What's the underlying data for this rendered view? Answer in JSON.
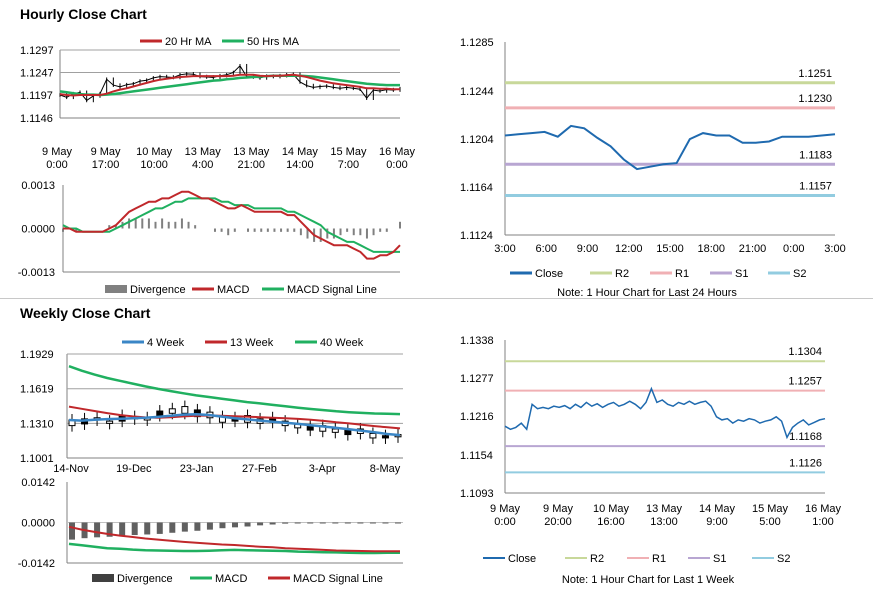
{
  "sections": {
    "hourly_title": "Hourly Close Chart",
    "weekly_title": "Weekly Close Chart"
  },
  "colors": {
    "red": "#c0282b",
    "green": "#20b060",
    "blue": "#3a86c6",
    "gray": "#808080",
    "darkblue": "#1f6aaf",
    "r2": "#c8d89a",
    "r1": "#f0b0b4",
    "s1": "#b8a6d2",
    "s2": "#92cce0"
  },
  "chart_data": [
    {
      "id": "hourly_price",
      "type": "line",
      "legend": [
        "20 Hr MA",
        "50 Hrs MA"
      ],
      "x_tick_labels": [
        [
          "9 May",
          "0:00"
        ],
        [
          "9 May",
          "17:00"
        ],
        [
          "10 May",
          "10:00"
        ],
        [
          "13 May",
          "4:00"
        ],
        [
          "13 May",
          "21:00"
        ],
        [
          "14 May",
          "14:00"
        ],
        [
          "15 May",
          "7:00"
        ],
        [
          "16 May",
          "0:00"
        ]
      ],
      "y_tick_labels": [
        "1.1297",
        "1.1247",
        "1.1197",
        "1.1146"
      ],
      "ylim": [
        1.1146,
        1.1297
      ],
      "series": [
        {
          "name": "Close",
          "values": [
            1.1197,
            1.1192,
            1.12,
            1.1203,
            1.1185,
            1.1195,
            1.12,
            1.1232,
            1.1219,
            1.1215,
            1.122,
            1.1222,
            1.1228,
            1.123,
            1.1235,
            1.1238,
            1.1237,
            1.1236,
            1.1242,
            1.1244,
            1.1243,
            1.1238,
            1.1237,
            1.1236,
            1.124,
            1.1242,
            1.1247,
            1.1262,
            1.1238,
            1.1237,
            1.1235,
            1.1239,
            1.1238,
            1.124,
            1.1242,
            1.1243,
            1.1226,
            1.1218,
            1.1214,
            1.1216,
            1.1217,
            1.1214,
            1.1212,
            1.1214,
            1.1212,
            1.121,
            1.119,
            1.1208,
            1.1206,
            1.1209,
            1.1208,
            1.1211
          ]
        },
        {
          "name": "20 Hr MA",
          "values": [
            1.1199,
            1.1197,
            1.1196,
            1.1197,
            1.1197,
            1.1197,
            1.1197,
            1.12,
            1.1205,
            1.1209,
            1.1212,
            1.1216,
            1.122,
            1.1224,
            1.1228,
            1.1231,
            1.1233,
            1.1235,
            1.1237,
            1.1238,
            1.1239,
            1.1239,
            1.1239,
            1.1239,
            1.1239,
            1.1239,
            1.124,
            1.1242,
            1.1242,
            1.1242,
            1.124,
            1.1239,
            1.124,
            1.124,
            1.1241,
            1.1242,
            1.124,
            1.1237,
            1.1233,
            1.1229,
            1.1226,
            1.1223,
            1.1221,
            1.1219,
            1.1217,
            1.1215,
            1.1212,
            1.1212,
            1.1211,
            1.1211,
            1.121,
            1.121
          ]
        },
        {
          "name": "50 Hrs MA",
          "values": [
            1.1205,
            1.1203,
            1.1201,
            1.1199,
            1.1198,
            1.1198,
            1.1197,
            1.1198,
            1.1199,
            1.1201,
            1.1203,
            1.1205,
            1.1207,
            1.1209,
            1.1211,
            1.1213,
            1.1215,
            1.1217,
            1.1219,
            1.1221,
            1.1223,
            1.1225,
            1.1227,
            1.1229,
            1.123,
            1.1232,
            1.1233,
            1.1235,
            1.1236,
            1.1237,
            1.1238,
            1.1239,
            1.124,
            1.124,
            1.124,
            1.124,
            1.124,
            1.1239,
            1.1238,
            1.1236,
            1.1234,
            1.1232,
            1.123,
            1.1228,
            1.1226,
            1.1224,
            1.1222,
            1.1221,
            1.122,
            1.1219,
            1.1219,
            1.1219
          ]
        }
      ]
    },
    {
      "id": "hourly_macd",
      "type": "line",
      "legend": [
        "Divergence",
        "MACD",
        "MACD Signal Line"
      ],
      "y_tick_labels": [
        "0.0013",
        "0.0000",
        "-0.0013"
      ],
      "ylim": [
        -0.0013,
        0.0013
      ],
      "series": [
        {
          "name": "MACD",
          "values": [
            0.0,
            0.0,
            -0.0001,
            -0.0001,
            -0.0001,
            -0.0001,
            -0.0001,
            0.0,
            0.0001,
            0.0003,
            0.0005,
            0.0006,
            0.0007,
            0.0008,
            0.0008,
            0.0009,
            0.0009,
            0.001,
            0.0011,
            0.0011,
            0.001,
            0.0009,
            0.0009,
            0.0008,
            0.0007,
            0.0006,
            0.0006,
            0.0007,
            0.0006,
            0.0005,
            0.0005,
            0.0005,
            0.0005,
            0.0005,
            0.0004,
            0.0004,
            0.0002,
            0.0,
            -0.0002,
            -0.0003,
            -0.0004,
            -0.0005,
            -0.0005,
            -0.0005,
            -0.0006,
            -0.0007,
            -0.0009,
            -0.0009,
            -0.0008,
            -0.0008,
            -0.0007,
            -0.0005
          ]
        },
        {
          "name": "MACD Signal Line",
          "values": [
            0.0001,
            0.0,
            0.0,
            -0.0001,
            -0.0001,
            -0.0001,
            -0.0001,
            -0.0001,
            0.0,
            0.0001,
            0.0002,
            0.0003,
            0.0004,
            0.0005,
            0.0006,
            0.0006,
            0.0007,
            0.0008,
            0.0008,
            0.0009,
            0.0009,
            0.0009,
            0.0009,
            0.0009,
            0.0008,
            0.0008,
            0.0007,
            0.0007,
            0.0007,
            0.0006,
            0.0006,
            0.0006,
            0.0006,
            0.0006,
            0.0005,
            0.0005,
            0.0004,
            0.0003,
            0.0002,
            0.0001,
            -0.0001,
            -0.0002,
            -0.0003,
            -0.0004,
            -0.0004,
            -0.0005,
            -0.0006,
            -0.0007,
            -0.0007,
            -0.0007,
            -0.0007,
            -0.0007
          ]
        }
      ]
    },
    {
      "id": "hourly_pivot",
      "type": "line",
      "x_tick_labels": [
        "3:00",
        "6:00",
        "9:00",
        "12:00",
        "15:00",
        "18:00",
        "21:00",
        "0:00",
        "3:00"
      ],
      "y_tick_labels": [
        "1.1285",
        "1.1244",
        "1.1204",
        "1.1164",
        "1.1124"
      ],
      "ylim": [
        1.1124,
        1.1285
      ],
      "levels": [
        {
          "name": "R2",
          "value": 1.1251,
          "label": "1.1251"
        },
        {
          "name": "R1",
          "value": 1.123,
          "label": "1.1230"
        },
        {
          "name": "S1",
          "value": 1.1183,
          "label": "1.1183"
        },
        {
          "name": "S2",
          "value": 1.1157,
          "label": "1.1157"
        }
      ],
      "series": [
        {
          "name": "Close",
          "values": [
            1.1207,
            1.1208,
            1.1209,
            1.121,
            1.1206,
            1.1215,
            1.1213,
            1.1205,
            1.1198,
            1.1187,
            1.1179,
            1.1181,
            1.1183,
            1.1184,
            1.1204,
            1.1209,
            1.1207,
            1.1207,
            1.1201,
            1.1201,
            1.1202,
            1.1206,
            1.1206,
            1.1206,
            1.1207,
            1.1208
          ]
        }
      ],
      "legend": [
        "Close",
        "R2",
        "R1",
        "S1",
        "S2"
      ],
      "note": "Note: 1 Hour Chart for Last 24 Hours"
    },
    {
      "id": "weekly_price",
      "type": "line",
      "legend": [
        "4 Week",
        "13 Week",
        "40 Week"
      ],
      "x_tick_labels": [
        "14-Nov",
        "19-Dec",
        "23-Jan",
        "27-Feb",
        "3-Apr",
        "8-May"
      ],
      "y_tick_labels": [
        "1.1929",
        "1.1619",
        "1.1310",
        "1.1001"
      ],
      "ylim": [
        1.1001,
        1.1929
      ],
      "candles": [
        [
          1.134,
          1.129
        ],
        [
          1.135,
          1.1305
        ],
        [
          1.136,
          1.134
        ],
        [
          1.133,
          1.131
        ],
        [
          1.138,
          1.133
        ],
        [
          1.137,
          1.135
        ],
        [
          1.136,
          1.134
        ],
        [
          1.142,
          1.138
        ],
        [
          1.144,
          1.14
        ],
        [
          1.146,
          1.14
        ],
        [
          1.143,
          1.137
        ],
        [
          1.141,
          1.136
        ],
        [
          1.137,
          1.132
        ],
        [
          1.136,
          1.133
        ],
        [
          1.138,
          1.132
        ],
        [
          1.135,
          1.131
        ],
        [
          1.136,
          1.132
        ],
        [
          1.133,
          1.129
        ],
        [
          1.13,
          1.127
        ],
        [
          1.129,
          1.125
        ],
        [
          1.129,
          1.124
        ],
        [
          1.126,
          1.123
        ],
        [
          1.125,
          1.121
        ],
        [
          1.126,
          1.122
        ],
        [
          1.122,
          1.118
        ],
        [
          1.12,
          1.118
        ],
        [
          1.121,
          1.119
        ]
      ],
      "series": [
        {
          "name": "4 Week",
          "values": [
            1.134,
            1.1335,
            1.1342,
            1.1348,
            1.1352,
            1.1355,
            1.136,
            1.1368,
            1.1378,
            1.1388,
            1.1392,
            1.1385,
            1.137,
            1.1355,
            1.1345,
            1.1335,
            1.1325,
            1.1315,
            1.1305,
            1.1293,
            1.1282,
            1.127,
            1.1258,
            1.1245,
            1.123,
            1.1215,
            1.1205
          ]
        },
        {
          "name": "13 Week",
          "values": [
            1.146,
            1.144,
            1.142,
            1.1402,
            1.1385,
            1.1372,
            1.1363,
            1.136,
            1.1365,
            1.1372,
            1.1378,
            1.138,
            1.1378,
            1.1374,
            1.137,
            1.1365,
            1.136,
            1.1355,
            1.135,
            1.1342,
            1.1332,
            1.132,
            1.131,
            1.1298,
            1.1286,
            1.1275,
            1.1265
          ]
        },
        {
          "name": "40 Week",
          "values": [
            1.182,
            1.178,
            1.1745,
            1.1715,
            1.169,
            1.1665,
            1.164,
            1.1618,
            1.1598,
            1.1578,
            1.156,
            1.1545,
            1.153,
            1.1515,
            1.15,
            1.1488,
            1.1475,
            1.1462,
            1.145,
            1.1438,
            1.1428,
            1.1418,
            1.141,
            1.1403,
            1.1398,
            1.1395,
            1.1393
          ]
        }
      ]
    },
    {
      "id": "weekly_macd",
      "type": "bar",
      "legend": [
        "Divergence",
        "MACD",
        "MACD Signal Line"
      ],
      "y_tick_labels": [
        "0.0142",
        "0.0000",
        "-0.0142"
      ],
      "ylim": [
        -0.0142,
        0.0142
      ],
      "divergence": [
        -0.006,
        -0.0055,
        -0.0052,
        -0.005,
        -0.0047,
        -0.0044,
        -0.0042,
        -0.004,
        -0.0036,
        -0.0032,
        -0.0029,
        -0.0025,
        -0.002,
        -0.0017,
        -0.0014,
        -0.001,
        -0.0007,
        -0.0004,
        -0.0002,
        -0.0001,
        -0.0001,
        -0.0001,
        -0.0001,
        -0.0001,
        -0.0001,
        -0.0001,
        -0.0001
      ],
      "series": [
        {
          "name": "MACD",
          "values": [
            -0.0075,
            -0.008,
            -0.0085,
            -0.009,
            -0.0092,
            -0.0095,
            -0.0097,
            -0.0098,
            -0.0099,
            -0.01,
            -0.01,
            -0.0099,
            -0.0097,
            -0.0096,
            -0.0097,
            -0.0098,
            -0.0099,
            -0.01,
            -0.0102,
            -0.0103,
            -0.0104,
            -0.0105,
            -0.0106,
            -0.0107,
            -0.0107,
            -0.0106,
            -0.0106
          ]
        },
        {
          "name": "MACD Signal Line",
          "values": [
            -0.0015,
            -0.0025,
            -0.0033,
            -0.004,
            -0.0046,
            -0.0051,
            -0.0056,
            -0.006,
            -0.0064,
            -0.0068,
            -0.0071,
            -0.0074,
            -0.0077,
            -0.0079,
            -0.0082,
            -0.0085,
            -0.0087,
            -0.009,
            -0.0092,
            -0.0094,
            -0.0096,
            -0.0098,
            -0.0099,
            -0.01,
            -0.0101,
            -0.0101,
            -0.0101
          ]
        }
      ]
    },
    {
      "id": "weekly_pivot",
      "type": "line",
      "x_tick_labels": [
        [
          "9 May",
          "0:00"
        ],
        [
          "9 May",
          "20:00"
        ],
        [
          "10 May",
          "16:00"
        ],
        [
          "13 May",
          "13:00"
        ],
        [
          "14 May",
          "9:00"
        ],
        [
          "15 May",
          "5:00"
        ],
        [
          "16 May",
          "1:00"
        ]
      ],
      "y_tick_labels": [
        "1.1338",
        "1.1277",
        "1.1216",
        "1.1154",
        "1.1093"
      ],
      "ylim": [
        1.1093,
        1.1338
      ],
      "levels": [
        {
          "name": "R2",
          "value": 1.1304,
          "label": "1.1304"
        },
        {
          "name": "R1",
          "value": 1.1257,
          "label": "1.1257"
        },
        {
          "name": "S1",
          "value": 1.1168,
          "label": "1.1168"
        },
        {
          "name": "S2",
          "value": 1.1126,
          "label": "1.1126"
        }
      ],
      "series": [
        {
          "name": "Close",
          "values": [
            1.12,
            1.1195,
            1.1198,
            1.1205,
            1.1195,
            1.1235,
            1.1228,
            1.123,
            1.1228,
            1.1232,
            1.123,
            1.1233,
            1.1228,
            1.1235,
            1.123,
            1.1238,
            1.1232,
            1.1236,
            1.123,
            1.1235,
            1.1238,
            1.1232,
            1.1235,
            1.124,
            1.1235,
            1.1228,
            1.1238,
            1.126,
            1.1238,
            1.1242,
            1.1235,
            1.1232,
            1.1238,
            1.1235,
            1.124,
            1.1235,
            1.1238,
            1.124,
            1.1232,
            1.1215,
            1.121,
            1.1212,
            1.1205,
            1.121,
            1.1208,
            1.1212,
            1.121,
            1.1205,
            1.1208,
            1.121,
            1.1215,
            1.1208,
            1.1182,
            1.1198,
            1.1205,
            1.121,
            1.1202,
            1.1206,
            1.121,
            1.1212
          ]
        }
      ],
      "legend": [
        "Close",
        "R2",
        "R1",
        "S1",
        "S2"
      ],
      "note": "Note: 1 Hour Chart for Last 1 Week"
    }
  ]
}
